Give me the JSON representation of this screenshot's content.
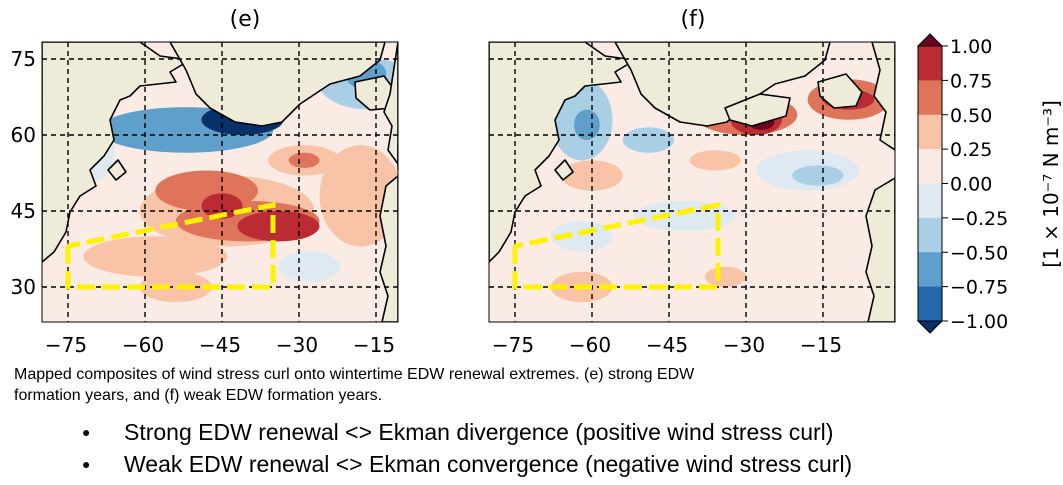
{
  "figure": {
    "panels": [
      {
        "id": "e",
        "title": "(e)",
        "features": [
          {
            "kind": "ellipse",
            "lon": -52,
            "lat": 61,
            "rlon": 17,
            "rlat": 4.5,
            "value": -0.75
          },
          {
            "kind": "ellipse",
            "lon": -41,
            "lat": 63,
            "rlon": 8,
            "rlat": 3,
            "value": -1.0
          },
          {
            "kind": "ellipse",
            "lon": -16,
            "lat": 70,
            "rlon": 10,
            "rlat": 5,
            "value": -0.5
          },
          {
            "kind": "ellipse",
            "lon": -17,
            "lat": 72,
            "rlon": 4,
            "rlat": 3,
            "value": -0.75
          },
          {
            "kind": "ellipse",
            "lon": -70,
            "lat": 57,
            "rlon": 4,
            "rlat": 6,
            "value": -0.25
          },
          {
            "kind": "ellipse",
            "lon": -44,
            "lat": 45,
            "rlon": 17,
            "rlat": 7,
            "value": 0.25
          },
          {
            "kind": "ellipse",
            "lon": -48,
            "lat": 49,
            "rlon": 10,
            "rlat": 4,
            "value": 0.5
          },
          {
            "kind": "ellipse",
            "lon": -40,
            "lat": 43,
            "rlon": 14,
            "rlat": 4,
            "value": 0.5
          },
          {
            "kind": "ellipse",
            "lon": -34,
            "lat": 42,
            "rlon": 8,
            "rlat": 3,
            "value": 0.75
          },
          {
            "kind": "ellipse",
            "lon": -45,
            "lat": 46,
            "rlon": 4,
            "rlat": 2.5,
            "value": 0.75
          },
          {
            "kind": "ellipse",
            "lon": -29,
            "lat": 55,
            "rlon": 7,
            "rlat": 3,
            "value": 0.25
          },
          {
            "kind": "ellipse",
            "lon": -29,
            "lat": 55,
            "rlon": 3,
            "rlat": 1.5,
            "value": 0.5
          },
          {
            "kind": "ellipse",
            "lon": -58,
            "lat": 36,
            "rlon": 14,
            "rlat": 4,
            "value": 0.25
          },
          {
            "kind": "ellipse",
            "lon": -54,
            "lat": 30,
            "rlon": 7,
            "rlat": 3,
            "value": 0.25
          },
          {
            "kind": "ellipse",
            "lon": -18,
            "lat": 48,
            "rlon": 8,
            "rlat": 10,
            "value": 0.25
          },
          {
            "kind": "ellipse",
            "lon": -28,
            "lat": 34,
            "rlon": 6,
            "rlat": 3,
            "value": -0.25
          }
        ]
      },
      {
        "id": "f",
        "title": "(f)",
        "features": [
          {
            "kind": "ellipse",
            "lon": -62,
            "lat": 63,
            "rlon": 6,
            "rlat": 8,
            "value": -0.5
          },
          {
            "kind": "ellipse",
            "lon": -61,
            "lat": 62,
            "rlon": 2.5,
            "rlat": 3,
            "value": -0.75
          },
          {
            "kind": "ellipse",
            "lon": -68,
            "lat": 70,
            "rlon": 5,
            "rlat": 3,
            "value": -0.25
          },
          {
            "kind": "ellipse",
            "lon": -49,
            "lat": 59,
            "rlon": 5,
            "rlat": 2.5,
            "value": -0.5
          },
          {
            "kind": "ellipse",
            "lon": -30,
            "lat": 64,
            "rlon": 10,
            "rlat": 4,
            "value": 0.5
          },
          {
            "kind": "ellipse",
            "lon": -28,
            "lat": 63,
            "rlon": 5,
            "rlat": 3,
            "value": 0.75
          },
          {
            "kind": "ellipse",
            "lon": -27,
            "lat": 62.5,
            "rlon": 2.5,
            "rlat": 1.5,
            "value": 1.0
          },
          {
            "kind": "ellipse",
            "lon": -10,
            "lat": 67,
            "rlon": 8,
            "rlat": 4,
            "value": 0.5
          },
          {
            "kind": "ellipse",
            "lon": -10,
            "lat": 67,
            "rlon": 5,
            "rlat": 2,
            "value": 0.75
          },
          {
            "kind": "ellipse",
            "lon": -18,
            "lat": 53,
            "rlon": 10,
            "rlat": 4,
            "value": -0.25
          },
          {
            "kind": "ellipse",
            "lon": -16,
            "lat": 52,
            "rlon": 5,
            "rlat": 2,
            "value": -0.5
          },
          {
            "kind": "ellipse",
            "lon": -42,
            "lat": 44,
            "rlon": 10,
            "rlat": 3,
            "value": -0.25
          },
          {
            "kind": "ellipse",
            "lon": -62,
            "lat": 40,
            "rlon": 6,
            "rlat": 3,
            "value": -0.25
          },
          {
            "kind": "ellipse",
            "lon": -60,
            "lat": 52,
            "rlon": 6,
            "rlat": 3,
            "value": 0.25
          },
          {
            "kind": "ellipse",
            "lon": -36,
            "lat": 55,
            "rlon": 5,
            "rlat": 2,
            "value": 0.25
          },
          {
            "kind": "ellipse",
            "lon": -62,
            "lat": 30,
            "rlon": 6,
            "rlat": 3,
            "value": 0.25
          },
          {
            "kind": "ellipse",
            "lon": -34,
            "lat": 32,
            "rlon": 4,
            "rlat": 2,
            "value": 0.25
          }
        ]
      }
    ],
    "lon_ticks": [
      "−75",
      "−60",
      "−45",
      "−30",
      "−15"
    ],
    "lon_tick_values": [
      -75,
      -60,
      -45,
      -30,
      -15
    ],
    "lat_ticks": [
      "75",
      "60",
      "45",
      "30"
    ],
    "lat_tick_values": [
      75,
      60,
      45,
      30
    ],
    "colorbar": {
      "levels": [
        1.0,
        0.75,
        0.5,
        0.25,
        0.0,
        -0.25,
        -0.5,
        -0.75,
        -1.0
      ],
      "level_labels": [
        "1.00",
        "0.75",
        "0.50",
        "0.25",
        "0.00",
        "−0.25",
        "−0.50",
        "−0.75",
        "−1.00"
      ],
      "label": "[1 × 10⁻⁷ N m⁻³]",
      "colors": [
        "#6b0222",
        "#bb2b33",
        "#e0745a",
        "#f9c3a8",
        "#faece4",
        "#dee9f2",
        "#a8cfe6",
        "#5e9fcb",
        "#2367ad",
        "#08306b"
      ]
    },
    "box_color": "#fff200"
  },
  "chart_data": [
    {
      "type": "heatmap",
      "title": "(e)",
      "xlabel": "",
      "ylabel": "",
      "xlim": [
        -80,
        -1
      ],
      "ylim": [
        22,
        78
      ],
      "x_ticks": [
        -75,
        -60,
        -45,
        -30,
        -15
      ],
      "y_ticks": [
        30,
        45,
        60,
        75
      ],
      "grid": true,
      "value_range": [
        -1.0,
        1.0
      ],
      "highlight_box": {
        "corners_lon_lat": [
          [
            -75,
            38
          ],
          [
            -75,
            30
          ],
          [
            -36,
            30
          ],
          [
            -36,
            47
          ]
        ],
        "style": "yellow dashed"
      }
    },
    {
      "type": "heatmap",
      "title": "(f)",
      "xlabel": "",
      "ylabel": "",
      "xlim": [
        -80,
        -1
      ],
      "ylim": [
        22,
        78
      ],
      "x_ticks": [
        -75,
        -60,
        -45,
        -30,
        -15
      ],
      "y_ticks": [
        30,
        45,
        60,
        75
      ],
      "grid": true,
      "value_range": [
        -1.0,
        1.0
      ],
      "highlight_box": {
        "corners_lon_lat": [
          [
            -75,
            38
          ],
          [
            -75,
            30
          ],
          [
            -36,
            30
          ],
          [
            -36,
            47
          ]
        ],
        "style": "yellow dashed"
      }
    }
  ],
  "caption": {
    "line1": "Mapped composites of wind stress curl onto wintertime EDW renewal extremes. (e) strong EDW",
    "line2": "formation years, and (f) weak EDW formation years."
  },
  "bullets": [
    "Strong EDW renewal <> Ekman divergence (positive wind stress curl)",
    "Weak EDW renewal <> Ekman convergence (negative wind stress curl)"
  ]
}
